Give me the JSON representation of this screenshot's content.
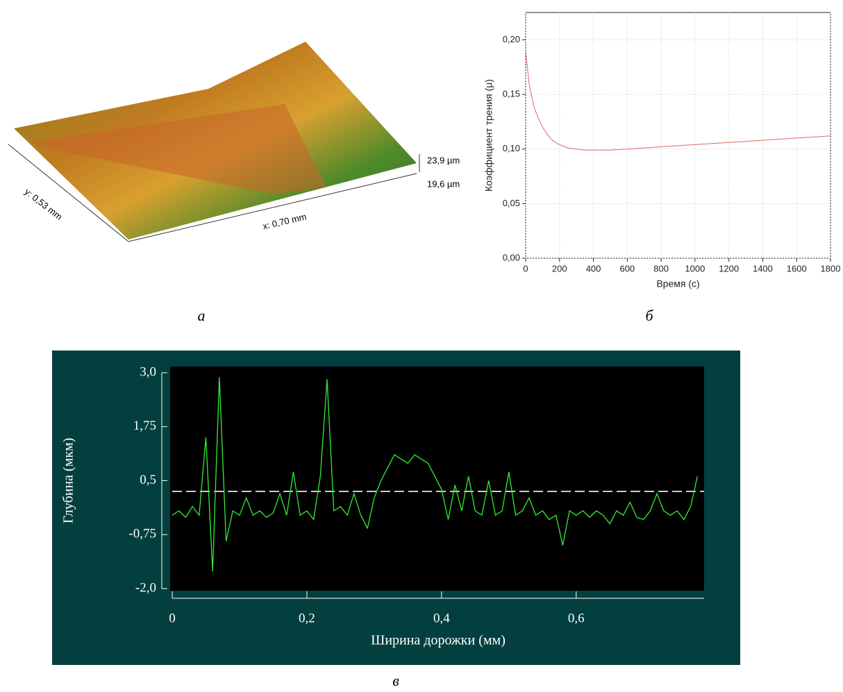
{
  "chart_data": [
    {
      "type": "surface",
      "caption": "а",
      "z_labels": [
        "23,9 µm",
        "19,6 µm"
      ],
      "x_label": "x: 0,70 mm",
      "y_label": "y: 0,53 mm"
    },
    {
      "type": "line",
      "caption": "б",
      "xlabel": "Время (с)",
      "ylabel": "Коэффициент трения (μ)",
      "color": "#e06666",
      "grid": true,
      "x": [
        0,
        10,
        20,
        30,
        40,
        50,
        75,
        100,
        125,
        150,
        175,
        200,
        250,
        300,
        350,
        400,
        500,
        600,
        700,
        800,
        900,
        1000,
        1100,
        1200,
        1300,
        1400,
        1500,
        1600,
        1700,
        1800
      ],
      "values": [
        0.19,
        0.175,
        0.16,
        0.152,
        0.145,
        0.138,
        0.128,
        0.12,
        0.114,
        0.109,
        0.106,
        0.104,
        0.101,
        0.1,
        0.099,
        0.099,
        0.099,
        0.1,
        0.101,
        0.102,
        0.103,
        0.104,
        0.105,
        0.106,
        0.107,
        0.108,
        0.109,
        0.11,
        0.111,
        0.112
      ],
      "xlim": [
        0,
        1800
      ],
      "xticks": [
        0,
        200,
        400,
        600,
        800,
        1000,
        1200,
        1400,
        1600,
        1800
      ],
      "ylim": [
        0,
        0.225
      ],
      "yticks": [
        {
          "value": 0,
          "label": "0,00"
        },
        {
          "value": 0.05,
          "label": "0,05"
        },
        {
          "value": 0.1,
          "label": "0,10"
        },
        {
          "value": 0.15,
          "label": "0,15"
        },
        {
          "value": 0.2,
          "label": "0,20"
        }
      ]
    },
    {
      "type": "line",
      "caption": "в",
      "xlabel": "Ширина дорожки (мм)",
      "ylabel": "Глубина (мкм)",
      "color": "#33ee33",
      "background": "#033f3f",
      "plot_background": "#000000",
      "reference_line": 0.25,
      "reference_color": "#cccccc",
      "x": [
        0,
        0.01,
        0.02,
        0.03,
        0.04,
        0.05,
        0.06,
        0.07,
        0.08,
        0.09,
        0.1,
        0.11,
        0.12,
        0.13,
        0.14,
        0.15,
        0.16,
        0.17,
        0.18,
        0.19,
        0.2,
        0.21,
        0.22,
        0.23,
        0.24,
        0.25,
        0.26,
        0.27,
        0.28,
        0.29,
        0.3,
        0.31,
        0.32,
        0.33,
        0.34,
        0.35,
        0.36,
        0.37,
        0.38,
        0.39,
        0.4,
        0.41,
        0.42,
        0.43,
        0.44,
        0.45,
        0.46,
        0.47,
        0.48,
        0.49,
        0.5,
        0.51,
        0.52,
        0.53,
        0.54,
        0.55,
        0.56,
        0.57,
        0.58,
        0.59,
        0.6,
        0.61,
        0.62,
        0.63,
        0.64,
        0.65,
        0.66,
        0.67,
        0.68,
        0.69,
        0.7,
        0.71,
        0.72,
        0.73,
        0.74,
        0.75,
        0.76,
        0.77,
        0.78
      ],
      "values": [
        -0.3,
        -0.2,
        -0.35,
        -0.1,
        -0.3,
        1.5,
        -1.6,
        2.9,
        -0.9,
        -0.2,
        -0.3,
        0.1,
        -0.3,
        -0.2,
        -0.35,
        -0.25,
        0.2,
        -0.3,
        0.7,
        -0.3,
        -0.2,
        -0.4,
        0.6,
        2.85,
        -0.2,
        -0.1,
        -0.3,
        0.2,
        -0.3,
        -0.6,
        0.1,
        0.5,
        0.8,
        1.1,
        1.0,
        0.9,
        1.1,
        1.0,
        0.9,
        0.6,
        0.3,
        -0.4,
        0.4,
        -0.2,
        0.6,
        -0.2,
        -0.3,
        0.5,
        -0.3,
        -0.2,
        0.7,
        -0.3,
        -0.2,
        0.1,
        -0.3,
        -0.2,
        -0.4,
        -0.3,
        -1.0,
        -0.2,
        -0.3,
        -0.2,
        -0.35,
        -0.2,
        -0.3,
        -0.5,
        -0.2,
        -0.3,
        0.0,
        -0.35,
        -0.4,
        -0.2,
        0.2,
        -0.2,
        -0.3,
        -0.2,
        -0.4,
        -0.1,
        0.6
      ],
      "xlim": [
        0,
        0.79
      ],
      "xticks": [
        0,
        {
          "value": 0.2,
          "label": "0,2"
        },
        {
          "value": 0.4,
          "label": "0,4"
        },
        {
          "value": 0.6,
          "label": "0,6"
        }
      ],
      "ylim": [
        -2,
        3
      ],
      "yticks": [
        {
          "value": 3,
          "label": "3,0"
        },
        {
          "value": 1.75,
          "label": "1,75"
        },
        {
          "value": 0.5,
          "label": "0,5"
        },
        {
          "value": -0.75,
          "label": "-0,75"
        },
        {
          "value": -2,
          "label": "-2,0"
        }
      ]
    }
  ]
}
